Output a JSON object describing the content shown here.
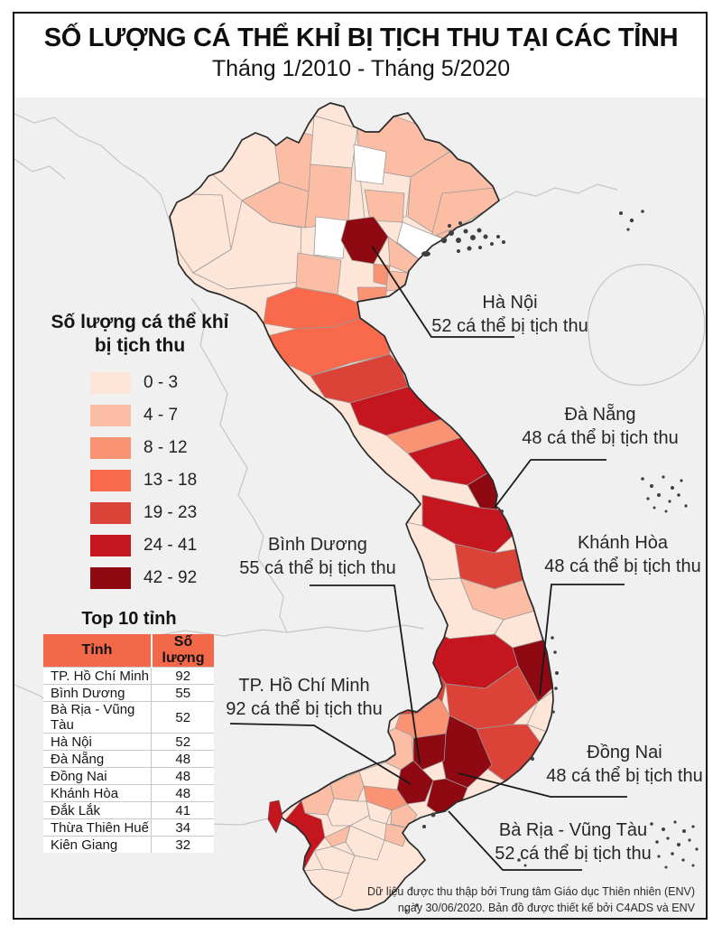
{
  "header": {
    "title": "SỐ LƯỢNG CÁ THỂ KHỈ BỊ TỊCH THU TẠI CÁC TỈNH",
    "subtitle": "Tháng 1/2010 - Tháng 5/2020"
  },
  "legend": {
    "title_line1": "Số lượng cá thể khỉ",
    "title_line2": "bị tịch thu",
    "classes": [
      {
        "label": "0 - 3",
        "color": "#fde5d8"
      },
      {
        "label": "4 - 7",
        "color": "#fbbda4"
      },
      {
        "label": "8 - 12",
        "color": "#fa9274"
      },
      {
        "label": "13 - 18",
        "color": "#f9694b"
      },
      {
        "label": "19 - 23",
        "color": "#dc4338"
      },
      {
        "label": "24 - 41",
        "color": "#c5161f"
      },
      {
        "label": "42 - 92",
        "color": "#8e0912"
      }
    ]
  },
  "top10": {
    "title": "Top 10 tỉnh",
    "columns": [
      "Tỉnh",
      "Số lượng"
    ],
    "rows": [
      {
        "province": "TP. Hồ Chí Minh",
        "value": "92"
      },
      {
        "province": "Bình Dương",
        "value": "55"
      },
      {
        "province": "Bà Rịa - Vũng Tàu",
        "value": "52"
      },
      {
        "province": "Hà Nội",
        "value": "52"
      },
      {
        "province": "Đà Nẵng",
        "value": "48"
      },
      {
        "province": "Đồng Nai",
        "value": "48"
      },
      {
        "province": "Khánh Hòa",
        "value": "48"
      },
      {
        "province": "Đắk Lắk",
        "value": "41"
      },
      {
        "province": "Thừa Thiên Huế",
        "value": "34"
      },
      {
        "province": "Kiên Giang",
        "value": "32"
      }
    ]
  },
  "annotations": {
    "hanoi": {
      "name": "Hà Nội",
      "value": "52 cá thể bị tịch thu"
    },
    "danang": {
      "name": "Đà Nẵng",
      "value": "48 cá thể bị tịch thu"
    },
    "khanhhoa": {
      "name": "Khánh Hòa",
      "value": "48 cá thể bị tịch thu"
    },
    "binhduong": {
      "name": "Bình Dương",
      "value": "55 cá thể bị tịch thu"
    },
    "tphcm": {
      "name": "TP. Hồ Chí Minh",
      "value": "92 cá thể bị tịch thu"
    },
    "dongnai": {
      "name": "Đồng Nai",
      "value": "48 cá thể bị tịch thu"
    },
    "brvt": {
      "name": "Bà Rịa - Vũng Tàu",
      "value": "52 cá thể bị tịch thu"
    }
  },
  "footer": {
    "line1": "Dữ liệu được thu thập bởi Trung tâm Giáo dục Thiên nhiên (ENV)",
    "line2": "ngày 30/06/2020. Bản đồ được thiết kế bởi C4ADS và ENV"
  },
  "chart_data": {
    "type": "heatmap",
    "subtype": "choropleth-map",
    "region": "Việt Nam",
    "title": "SỐ LƯỢNG CÁ THỂ KHỈ BỊ TỊCH THU TẠI CÁC TỈNH",
    "subtitle": "Tháng 1/2010 - Tháng 5/2020",
    "unit": "cá thể khỉ bị tịch thu",
    "bins": [
      "0 - 3",
      "4 - 7",
      "8 - 12",
      "13 - 18",
      "19 - 23",
      "24 - 41",
      "42 - 92"
    ],
    "bin_colors": [
      "#fde5d8",
      "#fbbda4",
      "#fa9274",
      "#f9694b",
      "#dc4338",
      "#c5161f",
      "#8e0912"
    ],
    "top_provinces": [
      {
        "province": "TP. Hồ Chí Minh",
        "value": 92
      },
      {
        "province": "Bình Dương",
        "value": 55
      },
      {
        "province": "Bà Rịa - Vũng Tàu",
        "value": 52
      },
      {
        "province": "Hà Nội",
        "value": 52
      },
      {
        "province": "Đà Nẵng",
        "value": 48
      },
      {
        "province": "Đồng Nai",
        "value": 48
      },
      {
        "province": "Khánh Hòa",
        "value": 48
      },
      {
        "province": "Đắk Lắk",
        "value": 41
      },
      {
        "province": "Thừa Thiên Huế",
        "value": 34
      },
      {
        "province": "Kiên Giang",
        "value": 32
      }
    ],
    "callouts": [
      {
        "province": "Hà Nội",
        "value": 52
      },
      {
        "province": "Đà Nẵng",
        "value": 48
      },
      {
        "province": "Khánh Hòa",
        "value": 48
      },
      {
        "province": "Bình Dương",
        "value": 55
      },
      {
        "province": "TP. Hồ Chí Minh",
        "value": 92
      },
      {
        "province": "Đồng Nai",
        "value": 48
      },
      {
        "province": "Bà Rịa - Vũng Tàu",
        "value": 52
      }
    ]
  }
}
